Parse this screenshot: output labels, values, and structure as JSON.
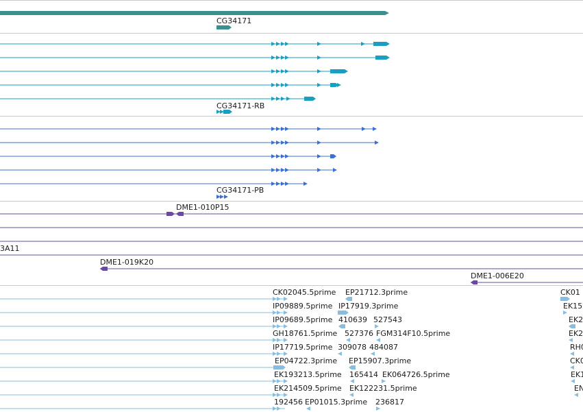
{
  "colors": {
    "gene": "#3a8f8f",
    "mrna": "#1a9fc0",
    "protein": "#3b6fd1",
    "clone": "#6a4aa0",
    "est": "#88bde0",
    "separator": "#c8c8c8"
  },
  "gene_track": {
    "label": "CG34171"
  },
  "mrna_track": {
    "label": "CG34171-RB"
  },
  "protein_track": {
    "label": "CG34171-PB"
  },
  "clone_track": {
    "labels": {
      "a": "DME1-010P15",
      "b": "3A11",
      "c": "DME1-019K20",
      "d": "DME1-006E20"
    }
  },
  "est_track": {
    "labels": {
      "r1a": "CK02045.5prime",
      "r1b": "EP21712.3prime",
      "r1c": "CK01",
      "r2a": "IP09889.5prime",
      "r2b": "IP17919.3prime",
      "r2c": "EK15",
      "r3a": "IP09689.5prime",
      "r3b": "410639",
      "r3c": "527543",
      "r3d": "EK2",
      "r4a": "GH18761.5prime",
      "r4b": "527376",
      "r4c": "FGM314F10.5prime",
      "r4d": "EK2",
      "r5a": "IP17719.5prime",
      "r5b": "309078",
      "r5c": "484087",
      "r5d": "RH0",
      "r6a": "EP04722.3prime",
      "r6b": "EP15907.3prime",
      "r6c": "CK0",
      "r7a": "EK193213.5prime",
      "r7b": "165414",
      "r7c": "EK064726.5prime",
      "r7d": "EK1",
      "r8a": "EK214509.5prime",
      "r8b": "EK122231.5prime",
      "r8c": "EN",
      "r9a": "192456",
      "r9b": "EP01015.3prime",
      "r9c": "236817"
    }
  }
}
